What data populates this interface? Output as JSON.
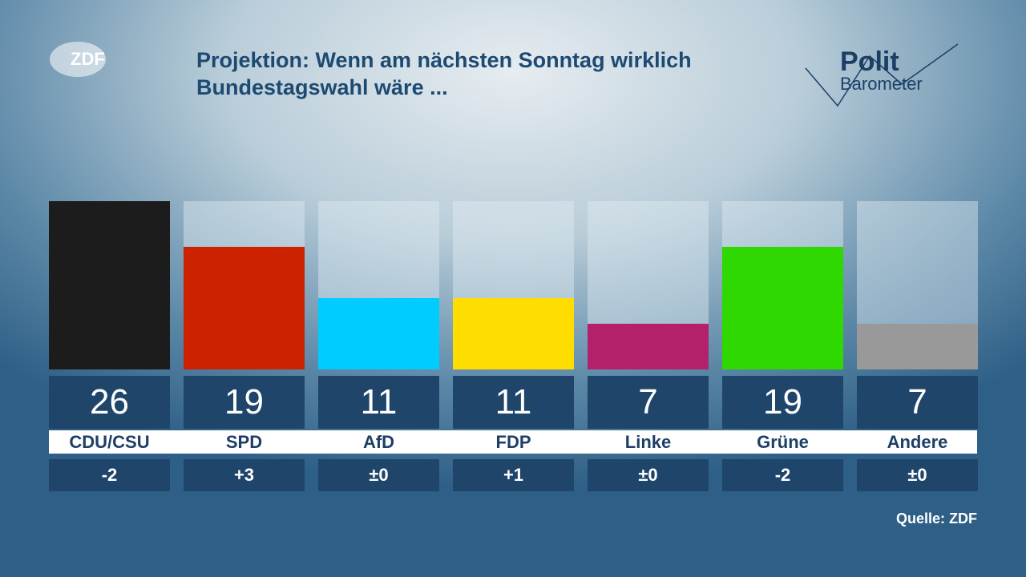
{
  "chart_data": {
    "type": "bar",
    "logo": "ZDF",
    "title": "Projektion: Wenn am nächsten Sonntag wirklich Bundestagswahl wäre ...",
    "brand": [
      "Polit",
      "Barometer"
    ],
    "categories": [
      "CDU/CSU",
      "SPD",
      "AfD",
      "FDP",
      "Linke",
      "Grüne",
      "Andere"
    ],
    "values": [
      26,
      19,
      11,
      11,
      7,
      19,
      7
    ],
    "colors": [
      "#1c1c1c",
      "#cc2200",
      "#00ccff",
      "#ffdd00",
      "#b3206b",
      "#2ed800",
      "#999999"
    ],
    "changes": [
      "-2",
      "+3",
      "±0",
      "+1",
      "±0",
      "-2",
      "±0"
    ],
    "ylim": [
      0,
      26
    ],
    "source": "Quelle: ZDF"
  }
}
